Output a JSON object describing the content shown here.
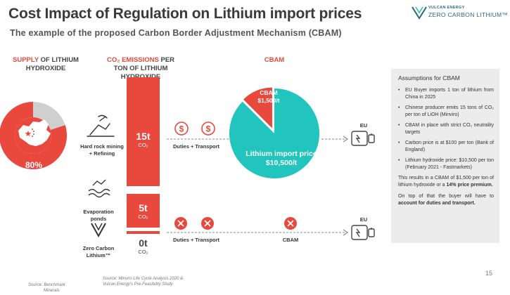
{
  "header": {
    "title": "Cost Impact of Regulation on  Lithium import prices",
    "subtitle": "The example of the proposed Carbon Border Adjustment Mechanism (CBAM)"
  },
  "logo": {
    "small": "VULCAN ENERGY",
    "big": "ZERO CARBON LITHIUM™"
  },
  "columns": {
    "supply": {
      "accent": "SUPPLY",
      "rest": " OF LITHIUM",
      "line2": "HYDROXIDE"
    },
    "emissions": {
      "accent": "CO₂ EMISSIONS",
      "rest": " PER",
      "line2": "TON OF LITHIUM",
      "line3": "HYDROXIDE"
    },
    "cbam": {
      "label": "CBAM"
    }
  },
  "supply": {
    "share_label": "80%",
    "share_value": 80,
    "routes": {
      "hard_rock": {
        "line1": "Hard rock mining",
        "line2": "+ Refining"
      },
      "evaporation": {
        "line1": "Evaporation",
        "line2": "ponds"
      },
      "zero_carbon": {
        "line1": "Zero Carbon",
        "line2": "Lithium™"
      }
    }
  },
  "emissions": {
    "hard_rock": {
      "value": "15t",
      "unit": "CO₂"
    },
    "evaporation": {
      "value": "5t",
      "unit": "CO₂"
    },
    "zero_carbon": {
      "value": "0t",
      "unit": "CO₂"
    }
  },
  "flows": {
    "top": {
      "duties_label": "Duties + Transport",
      "destination": "EU"
    },
    "bottom": {
      "duties_label": "Duties + Transport",
      "cbam_label": "CBAM",
      "destination": "EU"
    }
  },
  "pie": {
    "slices": [
      {
        "name": "CBAM",
        "label_line1": "CBAM",
        "label_line2": "$1,500/t",
        "value": 1500,
        "color": "#e8493c"
      },
      {
        "name": "Lithium import price",
        "label_line1": "Lithium import price",
        "label_line2": "$10,500/t",
        "value": 10500,
        "color": "#22c5bd"
      }
    ]
  },
  "assumptions": {
    "title": "Assumptions for CBAM",
    "items": [
      "EU Buyer imports 1 ton of lithium from China in 2025",
      "Chinese producer emits 15 tons of CO₂ per ton of LiOH (Minviro)",
      "CBAM in place with strict CO₂ neutrality targets",
      "Carbon price is at $100 per ton (Bank of England)",
      "Lithium hydroxide price: $10,500 per ton (February 2021 - Fastmarkets)"
    ],
    "result_pre": "This results in a CBAM of $1,500 per ton of lithium hydroxide or a ",
    "result_bold": "14% price premium.",
    "note_pre": "On top of that the buyer will have to ",
    "note_bold": "account for duties and transport."
  },
  "sources": {
    "left_line1": "Source: Benchmark",
    "left_line2": "Minerals",
    "right_line1": "Source: Minviro Life Cycle Analysis 2020 &",
    "right_line2": "Vulcan Energy's Pre-Feasibility Study"
  },
  "page_number": "15",
  "colors": {
    "accent_red": "#e8493c",
    "teal": "#22c5bd",
    "grey": "#cfcfcf"
  }
}
